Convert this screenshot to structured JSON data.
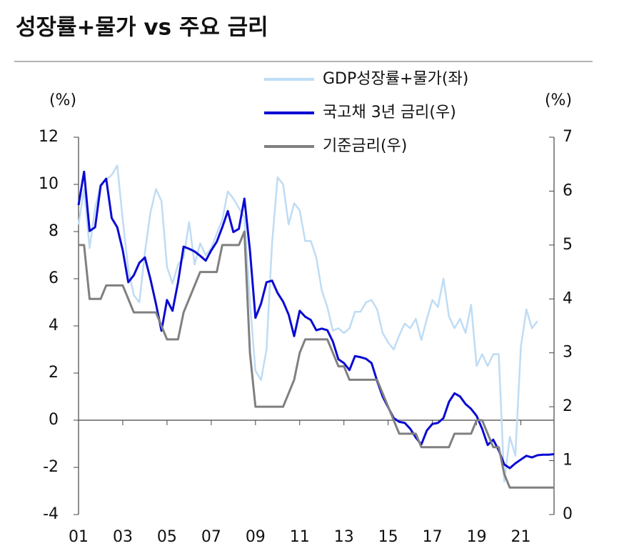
{
  "chart_data": {
    "type": "line",
    "title": "성장률+물가 vs 주요 금리",
    "y_label": "(%)",
    "y2_label": "(%)",
    "x": [
      1,
      1.25,
      1.5,
      1.75,
      2,
      2.25,
      2.5,
      2.75,
      3,
      3.25,
      3.5,
      3.75,
      4,
      4.25,
      4.5,
      4.75,
      5,
      5.25,
      5.5,
      5.75,
      6,
      6.25,
      6.5,
      6.75,
      7,
      7.25,
      7.5,
      7.75,
      8,
      8.25,
      8.5,
      8.75,
      9,
      9.25,
      9.5,
      9.75,
      10,
      10.25,
      10.5,
      10.75,
      11,
      11.25,
      11.5,
      11.75,
      12,
      12.25,
      12.5,
      12.75,
      13,
      13.25,
      13.5,
      13.75,
      14,
      14.25,
      14.5,
      14.75,
      15,
      15.25,
      15.5,
      15.75,
      16,
      16.25,
      16.5,
      16.75,
      17,
      17.25,
      17.5,
      17.75,
      18,
      18.25,
      18.5,
      18.75,
      19,
      19.25,
      19.5,
      19.75,
      20,
      20.25,
      20.5,
      20.75,
      21,
      21.25,
      21.5,
      21.75,
      22,
      22.25,
      22.5
    ],
    "xlim": [
      1,
      22.5
    ],
    "xticks": [
      {
        "value": 1,
        "label": "01"
      },
      {
        "value": 3,
        "label": "03"
      },
      {
        "value": 5,
        "label": "05"
      },
      {
        "value": 7,
        "label": "07"
      },
      {
        "value": 9,
        "label": "09"
      },
      {
        "value": 11,
        "label": "11"
      },
      {
        "value": 13,
        "label": "13"
      },
      {
        "value": 15,
        "label": "15"
      },
      {
        "value": 17,
        "label": "17"
      },
      {
        "value": 19,
        "label": "19"
      },
      {
        "value": 21,
        "label": "21"
      }
    ],
    "ylim": [
      -4,
      12
    ],
    "yticks": [
      -4,
      -2,
      0,
      2,
      4,
      6,
      8,
      10,
      12
    ],
    "y2lim": [
      0,
      7
    ],
    "y2ticks": [
      0,
      1,
      2,
      3,
      4,
      5,
      6,
      7
    ],
    "series": [
      {
        "name": "GDP성장률+물가(좌)",
        "color": "#bfdcf4",
        "axis": "y",
        "values": [
          8.3,
          9.8,
          7.3,
          9.0,
          10.0,
          10.2,
          10.4,
          10.8,
          8.5,
          6.4,
          5.3,
          5.0,
          7.1,
          8.8,
          9.8,
          9.3,
          6.5,
          5.8,
          6.6,
          6.9,
          8.4,
          6.6,
          7.5,
          7.0,
          7.3,
          7.9,
          8.5,
          9.7,
          9.4,
          9.0,
          8.6,
          5.0,
          2.1,
          1.7,
          3.0,
          7.5,
          10.3,
          10.0,
          8.3,
          9.2,
          8.9,
          7.6,
          7.6,
          6.9,
          5.5,
          4.8,
          3.8,
          3.9,
          3.7,
          3.9,
          4.6,
          4.6,
          5.0,
          5.1,
          4.7,
          3.7,
          3.3,
          3.0,
          3.6,
          4.1,
          3.9,
          4.3,
          3.4,
          4.3,
          5.1,
          4.8,
          6.0,
          4.4,
          3.9,
          4.3,
          3.7,
          4.9,
          2.3,
          2.8,
          2.3,
          2.8,
          2.8,
          -2.6,
          -0.7,
          -1.5,
          3.1,
          4.7,
          3.9,
          4.2,
          null,
          null,
          null
        ]
      },
      {
        "name": "국고채 3년 금리(우)",
        "color": "#0a0ad2",
        "axis": "y2",
        "values": [
          5.74,
          6.36,
          5.26,
          5.33,
          6.1,
          6.23,
          5.5,
          5.33,
          4.9,
          4.31,
          4.44,
          4.67,
          4.77,
          4.37,
          3.91,
          3.41,
          3.98,
          3.78,
          4.31,
          4.97,
          4.93,
          4.88,
          4.8,
          4.71,
          4.9,
          5.06,
          5.33,
          5.63,
          5.24,
          5.3,
          5.86,
          4.9,
          3.65,
          3.91,
          4.31,
          4.34,
          4.11,
          3.95,
          3.71,
          3.31,
          3.78,
          3.67,
          3.61,
          3.42,
          3.45,
          3.42,
          3.21,
          2.88,
          2.81,
          2.68,
          2.94,
          2.92,
          2.89,
          2.81,
          2.48,
          2.19,
          1.99,
          1.79,
          1.72,
          1.7,
          1.59,
          1.43,
          1.3,
          1.56,
          1.68,
          1.7,
          1.79,
          2.09,
          2.25,
          2.19,
          2.05,
          1.96,
          1.83,
          1.59,
          1.29,
          1.39,
          1.19,
          0.93,
          0.86,
          0.95,
          1.02,
          1.09,
          1.06,
          1.1,
          1.11,
          1.11,
          1.12
        ]
      },
      {
        "name": "기준금리(우)",
        "color": "#808080",
        "axis": "y2",
        "values": [
          5.0,
          5.0,
          4.0,
          4.0,
          4.0,
          4.25,
          4.25,
          4.25,
          4.25,
          4.0,
          3.75,
          3.75,
          3.75,
          3.75,
          3.75,
          3.5,
          3.25,
          3.25,
          3.25,
          3.75,
          4.0,
          4.25,
          4.5,
          4.5,
          4.5,
          4.5,
          5.0,
          5.0,
          5.0,
          5.0,
          5.25,
          3.0,
          2.0,
          2.0,
          2.0,
          2.0,
          2.0,
          2.0,
          2.25,
          2.5,
          3.0,
          3.25,
          3.25,
          3.25,
          3.25,
          3.25,
          3.0,
          2.75,
          2.75,
          2.5,
          2.5,
          2.5,
          2.5,
          2.5,
          2.5,
          2.25,
          2.0,
          1.75,
          1.5,
          1.5,
          1.5,
          1.5,
          1.25,
          1.25,
          1.25,
          1.25,
          1.25,
          1.25,
          1.5,
          1.5,
          1.5,
          1.5,
          1.75,
          1.75,
          1.5,
          1.25,
          1.25,
          0.75,
          0.5,
          0.5,
          0.5,
          0.5,
          0.5,
          0.5,
          0.5,
          0.5,
          0.5
        ]
      }
    ]
  }
}
